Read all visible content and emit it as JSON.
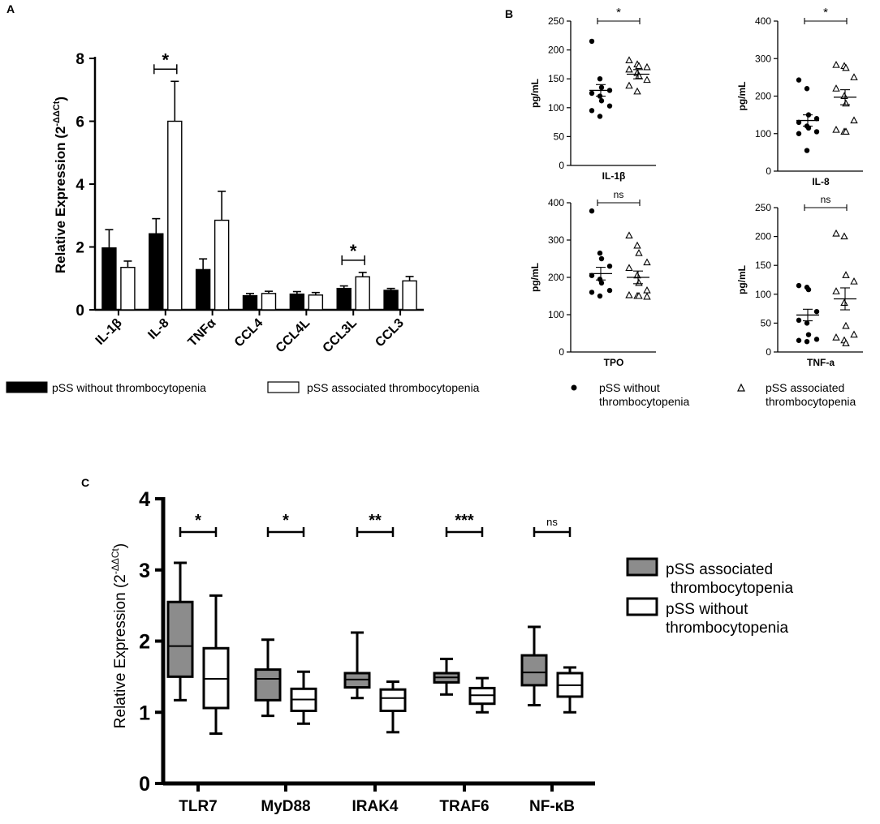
{
  "panels": {
    "A": "A",
    "B": "B",
    "C": "C"
  },
  "colors": {
    "black": "#000000",
    "white": "#ffffff",
    "gray": "#8c8c8c"
  },
  "chart_data": [
    {
      "id": "A",
      "type": "bar",
      "ylabel_main": "Relative Expression (2",
      "ylabel_sup": "-ΔΔCt",
      "ylabel_close": ")",
      "ylim": [
        0,
        8
      ],
      "yticks": [
        "0",
        "2",
        "4",
        "6",
        "8"
      ],
      "categories": [
        "IL-1β",
        "IL-8",
        "TNFα",
        "CCL4",
        "CCL4L",
        "CCL3L",
        "CCL3"
      ],
      "series": [
        {
          "name": "pSS without thrombocytopenia",
          "fill": "#000000",
          "values": [
            1.97,
            2.42,
            1.28,
            0.45,
            0.5,
            0.68,
            0.62
          ],
          "errors": [
            0.58,
            0.48,
            0.34,
            0.07,
            0.08,
            0.08,
            0.06
          ]
        },
        {
          "name": "pSS associated thrombocytopenia",
          "fill": "#ffffff",
          "values": [
            1.35,
            6.0,
            2.85,
            0.52,
            0.47,
            1.05,
            0.92
          ],
          "errors": [
            0.2,
            1.27,
            0.92,
            0.07,
            0.08,
            0.14,
            0.14
          ]
        }
      ],
      "significance": [
        {
          "category": "IL-8",
          "label": "*"
        },
        {
          "category": "CCL3L",
          "label": "*"
        }
      ],
      "legend": [
        "pSS without thrombocytopenia",
        "pSS associated thrombocytopenia"
      ]
    },
    {
      "id": "B",
      "type": "scatter",
      "legend": [
        "pSS without thrombocytopenia",
        "pSS associated thrombocytopenia"
      ],
      "subplots": [
        {
          "xlabel": "IL-1β",
          "ylabel": "pg/mL",
          "ylim": [
            0,
            250
          ],
          "yticks": [
            0,
            50,
            100,
            150,
            200,
            250
          ],
          "sig": "*",
          "groups": [
            {
              "marker": "circle",
              "mean": 130,
              "sem": 10,
              "values": [
                215,
                150,
                135,
                130,
                125,
                120,
                112,
                103,
                95,
                85
              ]
            },
            {
              "marker": "triangle",
              "mean": 158,
              "sem": 8,
              "values": [
                182,
                175,
                172,
                170,
                166,
                160,
                155,
                148,
                138,
                128
              ]
            }
          ]
        },
        {
          "xlabel": "IL-8",
          "ylabel": "pg/mL",
          "ylim": [
            0,
            400
          ],
          "yticks": [
            0,
            100,
            200,
            300,
            400
          ],
          "sig": "*",
          "groups": [
            {
              "marker": "circle",
              "mean": 135,
              "sem": 15,
              "values": [
                243,
                220,
                150,
                140,
                130,
                120,
                115,
                105,
                100,
                55
              ]
            },
            {
              "marker": "triangle",
              "mean": 197,
              "sem": 20,
              "values": [
                283,
                280,
                275,
                250,
                220,
                200,
                180,
                135,
                110,
                105,
                105
              ]
            }
          ]
        },
        {
          "xlabel": "TPO",
          "ylabel": "pg/mL",
          "ylim": [
            0,
            400
          ],
          "yticks": [
            0,
            100,
            200,
            300,
            400
          ],
          "sig": "ns",
          "groups": [
            {
              "marker": "circle",
              "mean": 210,
              "sem": 17,
              "values": [
                378,
                265,
                250,
                230,
                205,
                195,
                185,
                165,
                160,
                150
              ]
            },
            {
              "marker": "triangle",
              "mean": 200,
              "sem": 17,
              "values": [
                312,
                285,
                265,
                240,
                225,
                205,
                185,
                165,
                152,
                150,
                150,
                148
              ]
            }
          ]
        },
        {
          "xlabel": "TNF-a",
          "ylabel": "pg/mL",
          "ylim": [
            0,
            250
          ],
          "yticks": [
            0,
            50,
            100,
            150,
            200,
            250
          ],
          "sig": "ns",
          "groups": [
            {
              "marker": "circle",
              "mean": 64,
              "sem": 10,
              "values": [
                115,
                112,
                108,
                70,
                55,
                50,
                30,
                22,
                20,
                18
              ]
            },
            {
              "marker": "triangle",
              "mean": 92,
              "sem": 19,
              "values": [
                205,
                200,
                133,
                122,
                105,
                85,
                45,
                30,
                25,
                20,
                15
              ]
            }
          ]
        }
      ]
    },
    {
      "id": "C",
      "type": "box",
      "ylabel_main": "Relative Expression (2",
      "ylabel_sup": "-ΔΔCt",
      "ylabel_close": ")",
      "ylim": [
        0,
        4
      ],
      "yticks": [
        "0",
        "1",
        "2",
        "3",
        "4"
      ],
      "categories": [
        "TLR7",
        "MyD88",
        "IRAK4",
        "TRAF6",
        "NF-κB"
      ],
      "significance": [
        "*",
        "*",
        "**",
        "***",
        "ns"
      ],
      "series": [
        {
          "name": "pSS associated thrombocytopenia",
          "fill": "#8c8c8c",
          "boxes": [
            {
              "min": 1.17,
              "q1": 1.5,
              "median": 1.93,
              "q3": 2.55,
              "max": 3.1
            },
            {
              "min": 0.95,
              "q1": 1.17,
              "median": 1.47,
              "q3": 1.6,
              "max": 2.02
            },
            {
              "min": 1.2,
              "q1": 1.35,
              "median": 1.46,
              "q3": 1.55,
              "max": 2.12
            },
            {
              "min": 1.25,
              "q1": 1.42,
              "median": 1.49,
              "q3": 1.55,
              "max": 1.75
            },
            {
              "min": 1.1,
              "q1": 1.38,
              "median": 1.56,
              "q3": 1.8,
              "max": 2.2
            }
          ]
        },
        {
          "name": "pSS without thrombocytopenia",
          "fill": "#ffffff",
          "boxes": [
            {
              "min": 0.7,
              "q1": 1.06,
              "median": 1.47,
              "q3": 1.9,
              "max": 2.64
            },
            {
              "min": 0.84,
              "q1": 1.02,
              "median": 1.18,
              "q3": 1.33,
              "max": 1.57
            },
            {
              "min": 0.72,
              "q1": 1.02,
              "median": 1.2,
              "q3": 1.32,
              "max": 1.43
            },
            {
              "min": 1.0,
              "q1": 1.12,
              "median": 1.24,
              "q3": 1.34,
              "max": 1.48
            },
            {
              "min": 1.0,
              "q1": 1.22,
              "median": 1.38,
              "q3": 1.55,
              "max": 1.63
            }
          ]
        }
      ],
      "legend": [
        {
          "line1": "pSS associated",
          "line2": "thrombocytopenia"
        },
        {
          "line1": "pSS without",
          "line2": "thrombocytopenia"
        }
      ]
    }
  ]
}
